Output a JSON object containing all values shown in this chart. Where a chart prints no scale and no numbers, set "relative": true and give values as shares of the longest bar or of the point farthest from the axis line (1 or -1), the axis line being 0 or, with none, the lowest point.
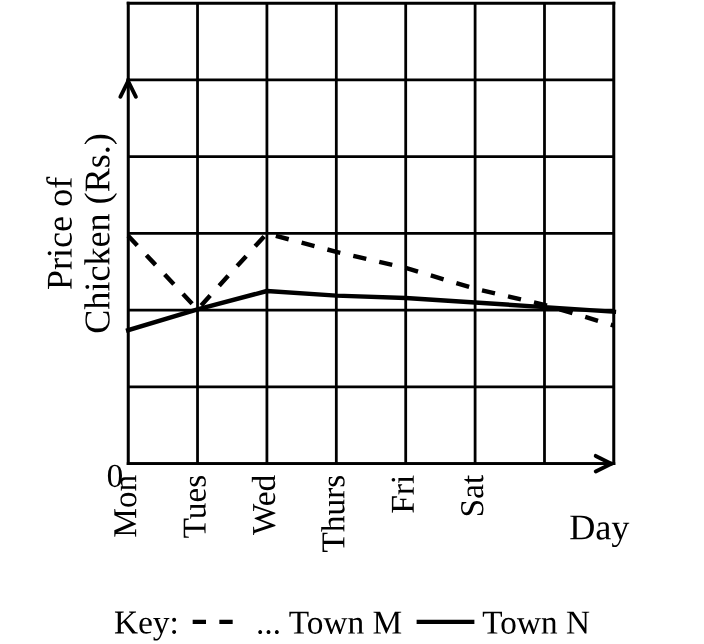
{
  "chart_data": {
    "type": "line",
    "relative": true,
    "xlabel": "Day",
    "ylabel": "Price of\nChicken (Rs.)",
    "legend_title": "Key:",
    "categories": [
      "Mon",
      "Tues",
      "Wed",
      "Thurs",
      "Fri",
      "Sat",
      null,
      null
    ],
    "series": [
      {
        "name": "... Town M",
        "color": "#000000",
        "line_style": "dashed",
        "values": [
          0.99,
          0.67,
          1.0,
          0.92,
          0.85,
          0.76,
          0.69,
          0.6
        ]
      },
      {
        "name": "Town N",
        "color": "#000000",
        "line_style": "solid",
        "values": [
          0.58,
          0.67,
          0.75,
          0.73,
          0.72,
          0.7,
          0.68,
          0.66
        ]
      }
    ],
    "annotations": [
      "0"
    ],
    "grid": true,
    "legend": "bottom",
    "marker": "none"
  }
}
